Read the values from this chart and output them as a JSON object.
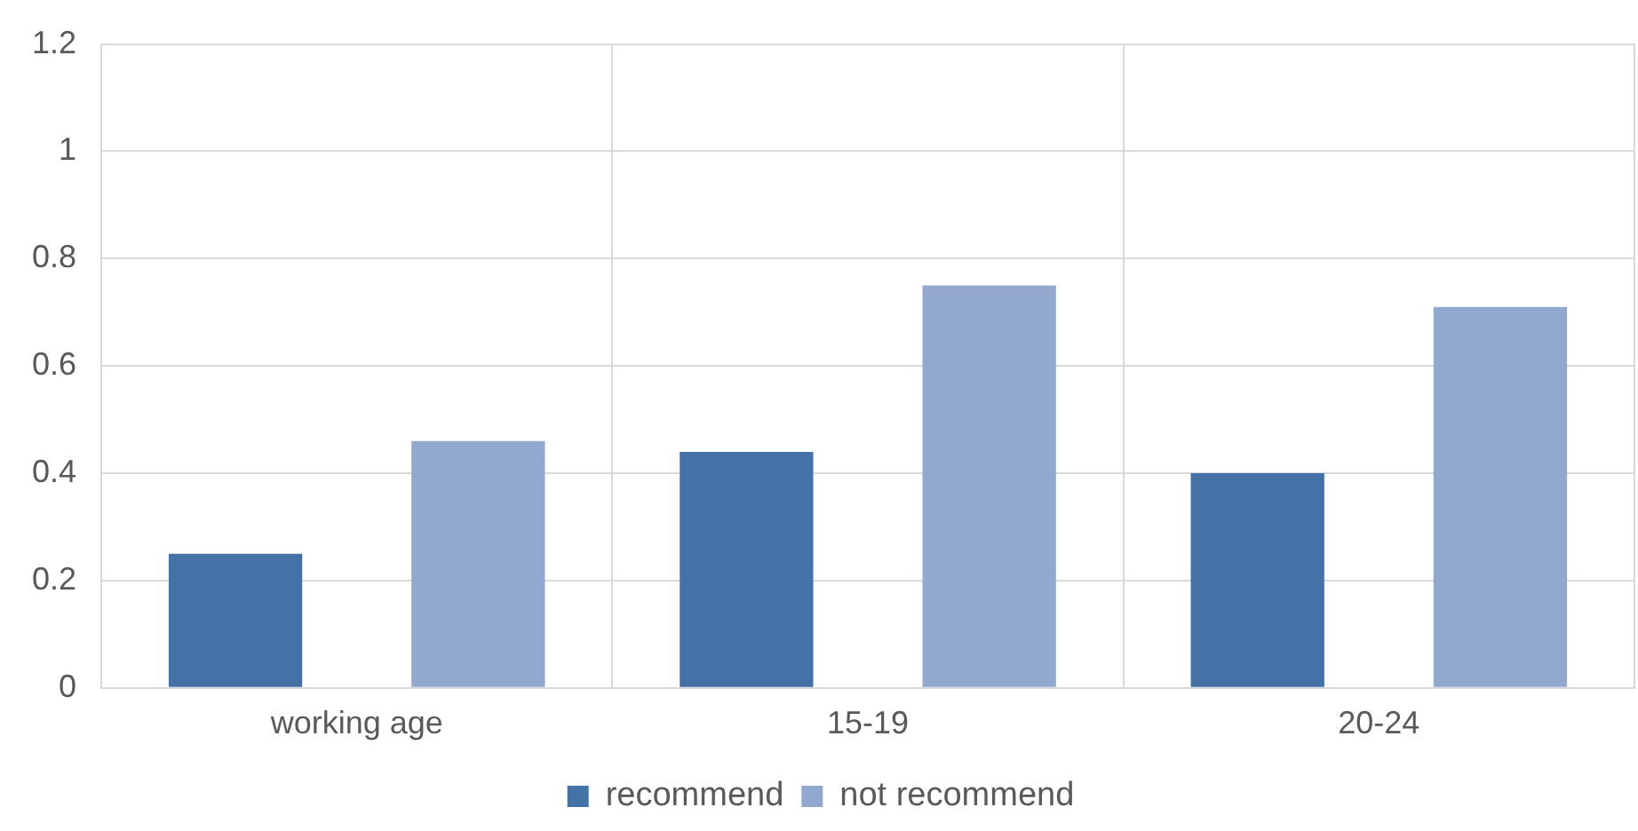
{
  "chart_data": {
    "type": "bar",
    "categories": [
      "working age",
      "15-19",
      "20-24"
    ],
    "series": [
      {
        "name": "recommend",
        "color": "#4472a6",
        "values": [
          0.25,
          0.44,
          0.4
        ]
      },
      {
        "name": "not recommend",
        "color": "#93a8cf",
        "values": [
          0.46,
          0.75,
          0.71
        ]
      }
    ],
    "ylim": [
      0,
      1.2
    ],
    "yticks": [
      0,
      0.2,
      0.4,
      0.6,
      0.8,
      1,
      1.2
    ],
    "grid": true,
    "legend": "bottom"
  }
}
